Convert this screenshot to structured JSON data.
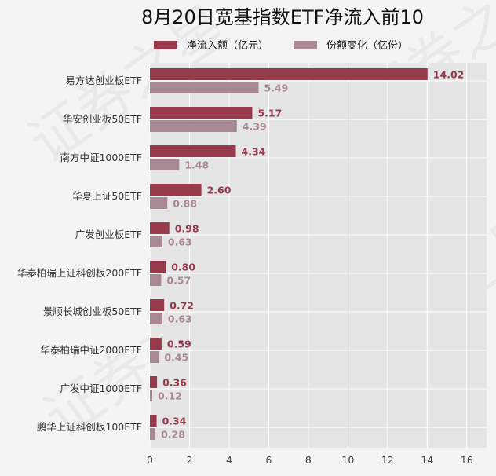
{
  "chart_data": {
    "type": "bar",
    "orientation": "horizontal",
    "title": "8月20日宽基指数ETF净流入前10",
    "categories": [
      "易方达创业板ETF",
      "华安创业板50ETF",
      "南方中证1000ETF",
      "华夏上证50ETF",
      "广发创业板ETF",
      "华泰柏瑞上证科创板200ETF",
      "景顺长城创业板50ETF",
      "华泰柏瑞中证2000ETF",
      "广发中证1000ETF",
      "鹏华上证科创板100ETF"
    ],
    "series": [
      {
        "name": "净流入额（亿元）",
        "color": "#973a4c",
        "values": [
          14.02,
          5.17,
          4.34,
          2.6,
          0.98,
          0.8,
          0.72,
          0.59,
          0.36,
          0.34
        ],
        "labels": [
          "14.02",
          "5.17",
          "4.34",
          "2.60",
          "0.98",
          "0.80",
          "0.72",
          "0.59",
          "0.36",
          "0.34"
        ]
      },
      {
        "name": "份额变化（亿份）",
        "color": "#a88892",
        "values": [
          5.49,
          4.39,
          1.48,
          0.88,
          0.63,
          0.57,
          0.63,
          0.45,
          0.12,
          0.28
        ],
        "labels": [
          "5.49",
          "4.39",
          "1.48",
          "0.88",
          "0.63",
          "0.57",
          "0.63",
          "0.45",
          "0.12",
          "0.28"
        ]
      }
    ],
    "xlim": [
      0,
      17
    ],
    "xticks": [
      "0",
      "2",
      "4",
      "6",
      "8",
      "10",
      "12",
      "14",
      "16"
    ],
    "xlabel": "",
    "ylabel": "",
    "grid": true,
    "legend_position": "top",
    "plot_background": "#e5e5e5",
    "watermark": "证券之星"
  }
}
